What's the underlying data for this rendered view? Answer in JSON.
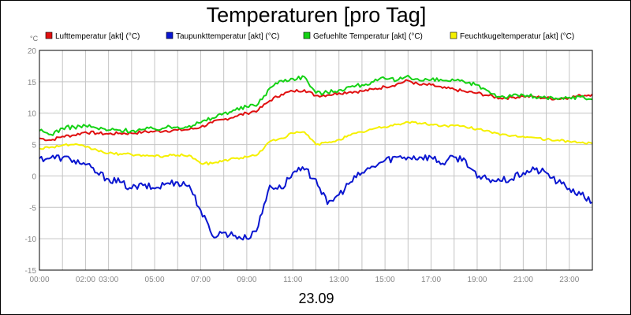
{
  "chart_data": {
    "type": "line",
    "title": "Temperaturen [pro Tag]",
    "xlabel": "23.09",
    "y_unit": "°C",
    "ylim": [
      -15,
      20
    ],
    "y_ticks": [
      -15,
      -10,
      -5,
      0,
      5,
      10,
      15,
      20
    ],
    "xlim": [
      "00:00",
      "24:00"
    ],
    "x_ticks": [
      "00:00",
      "02:00",
      "03:00",
      "05:00",
      "07:00",
      "09:00",
      "11:00",
      "13:00",
      "15:00",
      "17:00",
      "19:00",
      "21:00",
      "23:00"
    ],
    "grid": true,
    "legend_position": "top",
    "series": [
      {
        "name": "Lufttemperatur [akt] (°C)",
        "color": "#e01010",
        "x": [
          "00:00",
          "00:30",
          "01:00",
          "01:30",
          "02:00",
          "02:30",
          "03:00",
          "03:30",
          "04:00",
          "04:30",
          "05:00",
          "05:30",
          "06:00",
          "06:30",
          "07:00",
          "07:30",
          "08:00",
          "08:30",
          "09:00",
          "09:30",
          "10:00",
          "10:30",
          "11:00",
          "11:30",
          "12:00",
          "12:30",
          "13:00",
          "13:30",
          "14:00",
          "14:30",
          "15:00",
          "15:30",
          "16:00",
          "16:30",
          "17:00",
          "17:30",
          "18:00",
          "18:30",
          "19:00",
          "19:30",
          "20:00",
          "20:30",
          "21:00",
          "21:30",
          "22:00",
          "22:30",
          "23:00",
          "23:30",
          "24:00"
        ],
        "y": [
          6,
          5.7,
          6.3,
          6.5,
          7,
          6.8,
          6.7,
          6.8,
          6.8,
          7,
          7.1,
          7.2,
          7.3,
          7.4,
          7.8,
          8.5,
          9,
          9.5,
          10,
          10.5,
          12,
          13,
          13.5,
          13.7,
          12.8,
          12.9,
          13.2,
          13.4,
          13.5,
          13.8,
          14.2,
          14.6,
          15.2,
          14.5,
          14.5,
          14,
          13.8,
          13.4,
          13.2,
          12.8,
          12.4,
          12.5,
          12.7,
          12.6,
          12.4,
          12.3,
          12.5,
          12.8,
          13
        ]
      },
      {
        "name": "Taupunkttemperatur [akt] (°C)",
        "color": "#0a16d0",
        "x": [
          "00:00",
          "00:30",
          "01:00",
          "01:30",
          "02:00",
          "02:30",
          "03:00",
          "03:30",
          "04:00",
          "04:30",
          "05:00",
          "05:30",
          "06:00",
          "06:30",
          "07:00",
          "07:30",
          "08:00",
          "08:30",
          "09:00",
          "09:30",
          "10:00",
          "10:30",
          "11:00",
          "11:30",
          "12:00",
          "12:30",
          "13:00",
          "13:30",
          "14:00",
          "14:30",
          "15:00",
          "15:30",
          "16:00",
          "16:30",
          "17:00",
          "17:30",
          "18:00",
          "18:30",
          "19:00",
          "19:30",
          "20:00",
          "20:30",
          "21:00",
          "21:30",
          "22:00",
          "22:30",
          "23:00",
          "23:30",
          "24:00"
        ],
        "y": [
          2.8,
          2.9,
          2.9,
          2.5,
          1.8,
          0.5,
          -0.5,
          -1,
          -2,
          -1.5,
          -2,
          -1.2,
          -1,
          -1.5,
          -5.5,
          -9.5,
          -9,
          -9.5,
          -10,
          -8,
          -1.5,
          -2,
          0.5,
          1,
          -0.5,
          -4.5,
          -3,
          -1,
          0.5,
          1.5,
          2.5,
          3,
          3,
          3,
          3,
          2,
          3,
          2.5,
          -0.3,
          -0.5,
          -0.8,
          -0.5,
          0.5,
          1,
          0.5,
          -1,
          -2,
          -3,
          -4.2
        ]
      },
      {
        "name": "Gefuehlte Temperatur [akt] (°C)",
        "color": "#14d214",
        "x": [
          "00:00",
          "00:30",
          "01:00",
          "01:30",
          "02:00",
          "02:30",
          "03:00",
          "03:30",
          "04:00",
          "04:30",
          "05:00",
          "05:30",
          "06:00",
          "06:30",
          "07:00",
          "07:30",
          "08:00",
          "08:30",
          "09:00",
          "09:30",
          "10:00",
          "10:30",
          "11:00",
          "11:30",
          "12:00",
          "12:30",
          "13:00",
          "13:30",
          "14:00",
          "14:30",
          "15:00",
          "15:30",
          "16:00",
          "16:30",
          "17:00",
          "17:30",
          "18:00",
          "18:30",
          "19:00",
          "19:30",
          "20:00",
          "20:30",
          "21:00",
          "21:30",
          "22:00",
          "22:30",
          "23:00",
          "23:30",
          "24:00"
        ],
        "y": [
          7.2,
          6.6,
          7.6,
          7.8,
          8,
          7.6,
          7.3,
          7.3,
          7.2,
          7.4,
          7.5,
          7.7,
          7.8,
          8,
          8.5,
          9.2,
          10,
          10.5,
          11,
          11.5,
          14,
          15.2,
          15.5,
          15.8,
          13.2,
          13.3,
          13.7,
          14.2,
          14.5,
          15,
          15.5,
          15.2,
          16,
          15.2,
          15.3,
          15.2,
          15.2,
          14.8,
          14.5,
          13.5,
          12.6,
          12.7,
          12.9,
          12.6,
          12.4,
          12.2,
          12.5,
          12.6,
          12.2
        ]
      },
      {
        "name": "Feuchtkugeltemperatur [akt] (°C)",
        "color": "#f5f000",
        "x": [
          "00:00",
          "00:30",
          "01:00",
          "01:30",
          "02:00",
          "02:30",
          "03:00",
          "03:30",
          "04:00",
          "04:30",
          "05:00",
          "05:30",
          "06:00",
          "06:30",
          "07:00",
          "07:30",
          "08:00",
          "08:30",
          "09:00",
          "09:30",
          "10:00",
          "10:30",
          "11:00",
          "11:30",
          "12:00",
          "12:30",
          "13:00",
          "13:30",
          "14:00",
          "14:30",
          "15:00",
          "15:30",
          "16:00",
          "16:30",
          "17:00",
          "17:30",
          "18:00",
          "18:30",
          "19:00",
          "19:30",
          "20:00",
          "20:30",
          "21:00",
          "21:30",
          "22:00",
          "22:30",
          "23:00",
          "23:30",
          "24:00"
        ],
        "y": [
          4.4,
          4.6,
          4.9,
          5,
          4.6,
          4.1,
          3.6,
          3.5,
          3.4,
          3.3,
          3.1,
          3.2,
          3.3,
          3.3,
          2,
          2,
          2.5,
          2.8,
          3,
          3.5,
          5.5,
          6,
          6.8,
          7,
          5,
          5.3,
          5.8,
          6.5,
          7,
          7.5,
          7.8,
          8.2,
          8.6,
          8.4,
          8.2,
          8,
          8,
          7.8,
          7.5,
          7.2,
          6.5,
          6.4,
          6.3,
          6.1,
          5.8,
          5.7,
          5.5,
          5.3,
          5.2
        ]
      }
    ]
  }
}
